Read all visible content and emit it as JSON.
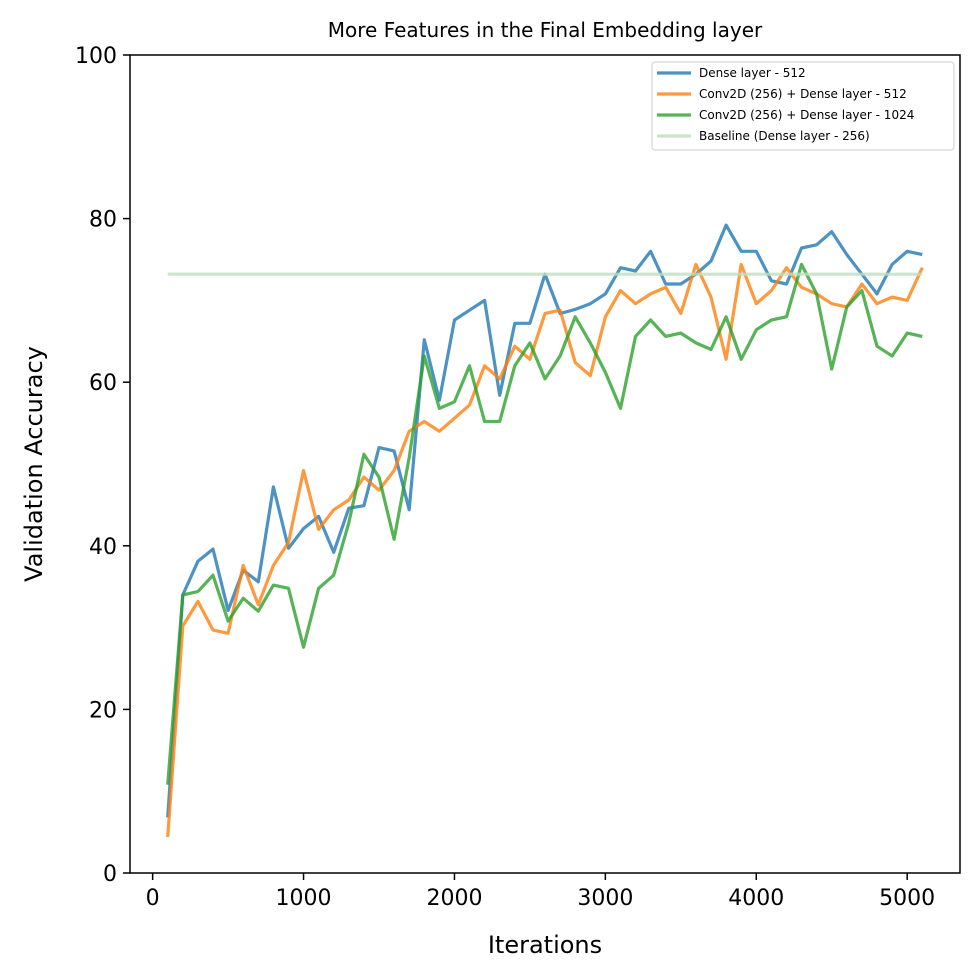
{
  "chart_data": {
    "type": "line",
    "title": "More Features in the Final Embedding layer",
    "xlabel": "Iterations",
    "ylabel": "Validation Accuracy",
    "xlim": [
      -150,
      5350
    ],
    "ylim": [
      0,
      100
    ],
    "xticks": [
      0,
      1000,
      2000,
      3000,
      4000,
      5000
    ],
    "yticks": [
      0,
      20,
      40,
      60,
      80,
      100
    ],
    "grid": false,
    "legend_position": "top-right",
    "x": [
      100,
      200,
      300,
      400,
      500,
      600,
      700,
      800,
      900,
      1000,
      1100,
      1200,
      1300,
      1400,
      1500,
      1600,
      1700,
      1800,
      1900,
      2000,
      2100,
      2200,
      2300,
      2400,
      2500,
      2600,
      2700,
      2800,
      2900,
      3000,
      3100,
      3200,
      3300,
      3400,
      3500,
      3600,
      3700,
      3800,
      3900,
      4000,
      4100,
      4200,
      4300,
      4400,
      4500,
      4600,
      4700,
      4800,
      4900,
      5000,
      5100
    ],
    "series": [
      {
        "name": "Dense layer - 512",
        "color": "#1f77b4",
        "values": [
          6.8,
          34.0,
          38.1,
          39.6,
          32.1,
          37.0,
          35.6,
          47.2,
          39.7,
          42.1,
          43.6,
          39.2,
          44.6,
          44.9,
          52.0,
          51.6,
          44.4,
          65.2,
          57.8,
          67.6,
          68.8,
          70.0,
          58.4,
          67.2,
          67.2,
          73.2,
          68.4,
          68.9,
          69.6,
          70.8,
          74.0,
          73.6,
          76.0,
          72.0,
          72.0,
          73.2,
          74.8,
          79.2,
          76.0,
          76.0,
          72.4,
          72.0,
          76.4,
          76.8,
          78.4,
          75.6,
          73.2,
          70.8,
          74.4,
          76.0,
          75.6
        ]
      },
      {
        "name": "Conv2D (256) + Dense layer - 512",
        "color": "#ff7f0e",
        "values": [
          4.4,
          30.2,
          33.2,
          29.7,
          29.3,
          37.6,
          32.8,
          37.6,
          40.4,
          49.2,
          42.0,
          44.4,
          45.6,
          48.4,
          46.8,
          49.2,
          54.0,
          55.2,
          54.0,
          55.6,
          57.2,
          62.0,
          60.4,
          64.4,
          62.8,
          68.4,
          68.8,
          62.4,
          60.8,
          68.0,
          71.2,
          69.6,
          70.8,
          71.6,
          68.4,
          74.4,
          70.4,
          62.8,
          74.4,
          69.6,
          71.2,
          74.0,
          71.6,
          70.8,
          69.6,
          69.2,
          72.0,
          69.6,
          70.4,
          70.0,
          74.0
        ]
      },
      {
        "name": "Conv2D (256) + Dense layer - 1024",
        "color": "#2ca02c",
        "values": [
          10.8,
          34.0,
          34.4,
          36.4,
          30.8,
          33.6,
          32.0,
          35.2,
          34.8,
          27.6,
          34.8,
          36.4,
          42.8,
          51.2,
          48.4,
          40.8,
          50.8,
          63.2,
          56.8,
          57.6,
          62.0,
          55.2,
          55.2,
          62.0,
          64.8,
          60.4,
          63.2,
          68.0,
          64.8,
          61.2,
          56.8,
          65.6,
          67.6,
          65.6,
          66.0,
          64.8,
          64.0,
          68.0,
          62.8,
          66.4,
          67.6,
          68.0,
          74.4,
          70.8,
          61.6,
          69.2,
          71.2,
          64.4,
          63.2,
          66.0,
          65.6
        ]
      },
      {
        "name": "Baseline (Dense layer - 256)",
        "color": "#bedfbe",
        "x": [
          100,
          5100
        ],
        "values": [
          73.2,
          73.2
        ]
      }
    ]
  }
}
